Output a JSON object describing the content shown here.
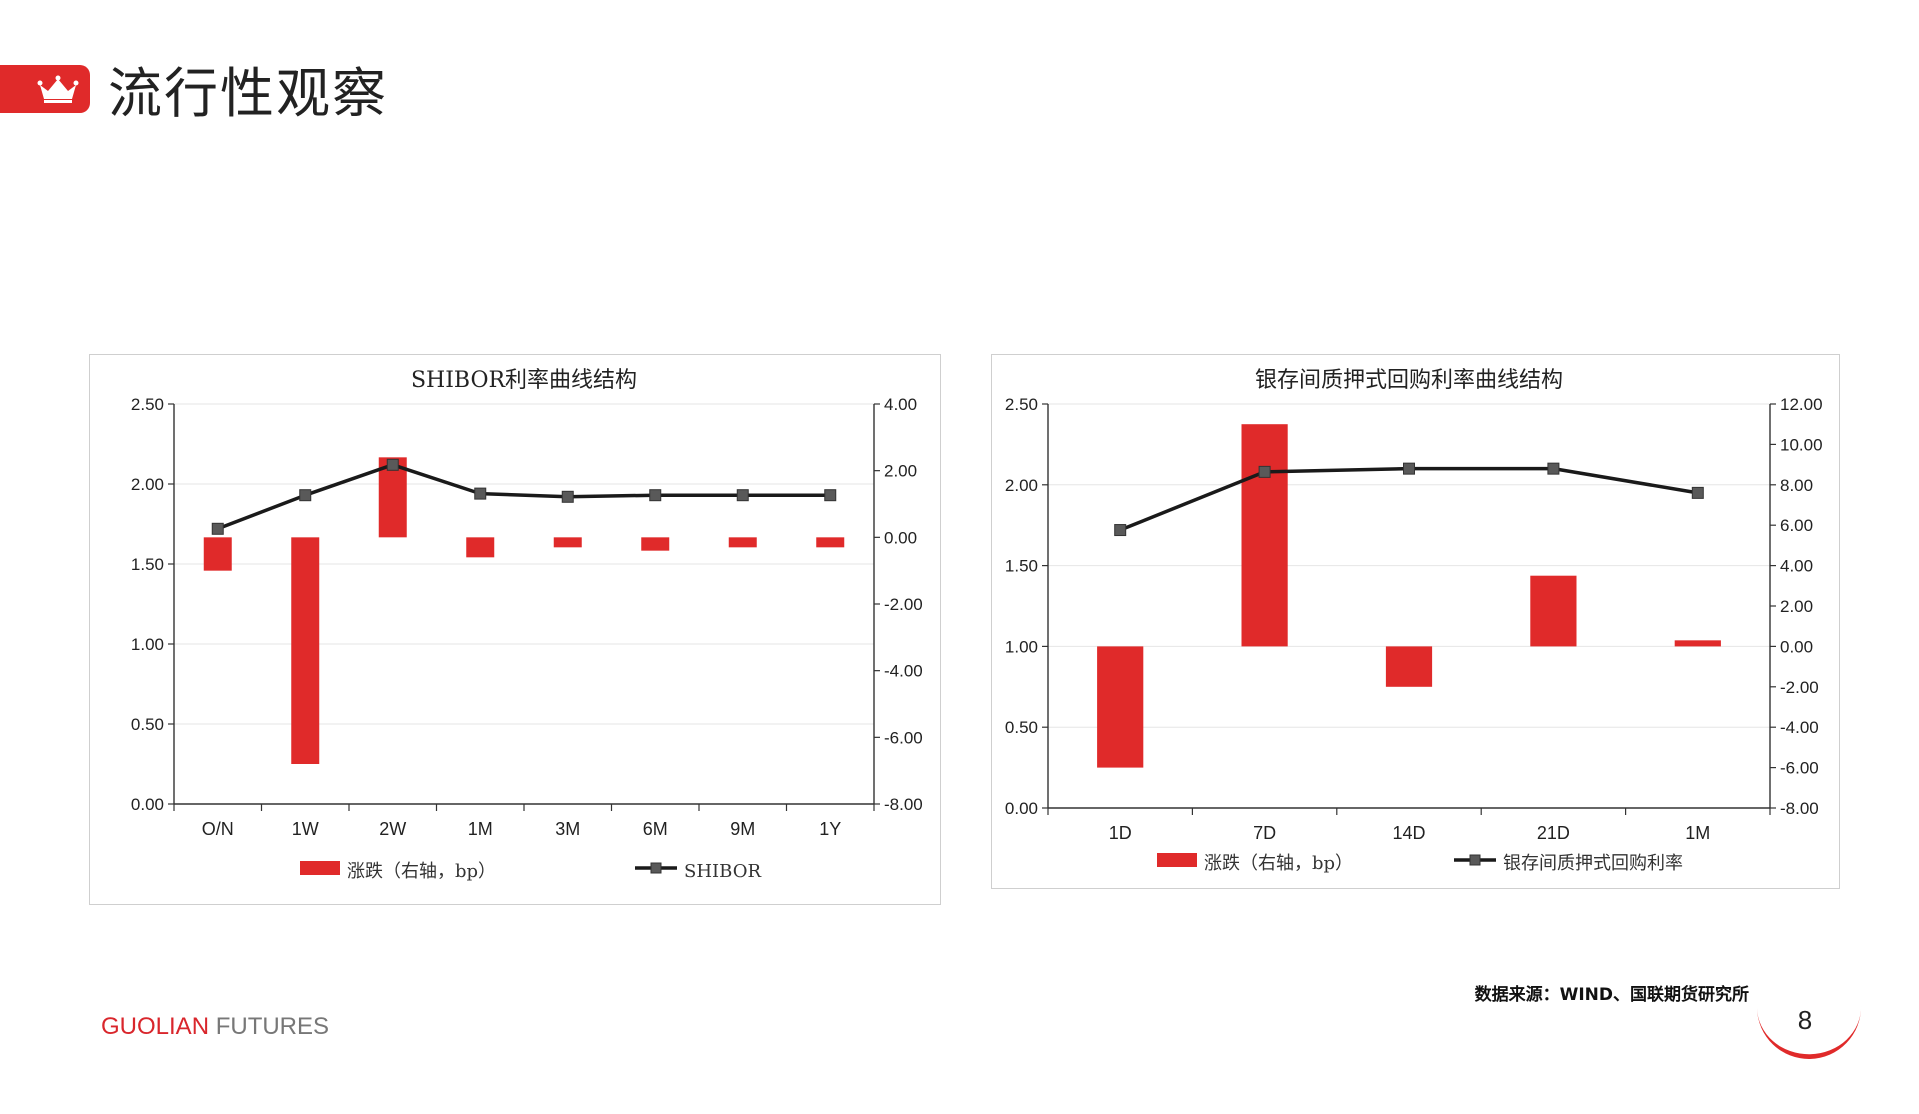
{
  "header": {
    "title": "流行性观察",
    "accent_color": "#e02a2a",
    "icon": "crown-icon"
  },
  "chart_data": [
    {
      "type": "bar+line",
      "title": "SHIBOR利率曲线结构",
      "categories": [
        "O/N",
        "1W",
        "2W",
        "1M",
        "3M",
        "6M",
        "9M",
        "1Y"
      ],
      "left_axis": {
        "min": 0,
        "max": 2.5,
        "step": 0.5,
        "ticks": [
          "0.00",
          "0.50",
          "1.00",
          "1.50",
          "2.00",
          "2.50"
        ]
      },
      "right_axis": {
        "min": -8,
        "max": 4,
        "step": 2,
        "ticks": [
          "-8.00",
          "-6.00",
          "-4.00",
          "-2.00",
          "0.00",
          "2.00",
          "4.00"
        ]
      },
      "series": [
        {
          "name": "涨跌（右轴，bp）",
          "type": "bar",
          "axis": "right",
          "color": "#e02a2a",
          "values": [
            -1.0,
            -6.8,
            2.4,
            -0.6,
            -0.3,
            -0.4,
            -0.3,
            -0.3
          ]
        },
        {
          "name": "SHIBOR",
          "type": "line",
          "axis": "left",
          "color": "#1a1a1a",
          "marker_color": "#595959",
          "values": [
            1.72,
            1.93,
            2.12,
            1.94,
            1.92,
            1.93,
            1.93,
            1.93
          ]
        }
      ],
      "legend_position": "bottom"
    },
    {
      "type": "bar+line",
      "title": "银存间质押式回购利率曲线结构",
      "categories": [
        "1D",
        "7D",
        "14D",
        "21D",
        "1M"
      ],
      "left_axis": {
        "min": 0,
        "max": 2.5,
        "step": 0.5,
        "ticks": [
          "0.00",
          "0.50",
          "1.00",
          "1.50",
          "2.00",
          "2.50"
        ]
      },
      "right_axis": {
        "min": -8,
        "max": 12,
        "step": 2,
        "ticks": [
          "-8.00",
          "-6.00",
          "-4.00",
          "-2.00",
          "0.00",
          "2.00",
          "4.00",
          "6.00",
          "8.00",
          "10.00",
          "12.00"
        ]
      },
      "series": [
        {
          "name": "涨跌（右轴，bp）",
          "type": "bar",
          "axis": "right",
          "color": "#e02a2a",
          "values": [
            -6.0,
            11.0,
            -2.0,
            3.5,
            0.3
          ]
        },
        {
          "name": "银存间质押式回购利率",
          "type": "line",
          "axis": "left",
          "color": "#1a1a1a",
          "marker_color": "#595959",
          "values": [
            1.72,
            2.08,
            2.1,
            2.1,
            1.95
          ]
        }
      ],
      "legend_position": "bottom"
    }
  ],
  "footer": {
    "source": "数据来源：WIND、国联期货研究所",
    "brand_part1": "GUOLIAN",
    "brand_part2": " FUTURES",
    "page_number": "8"
  }
}
